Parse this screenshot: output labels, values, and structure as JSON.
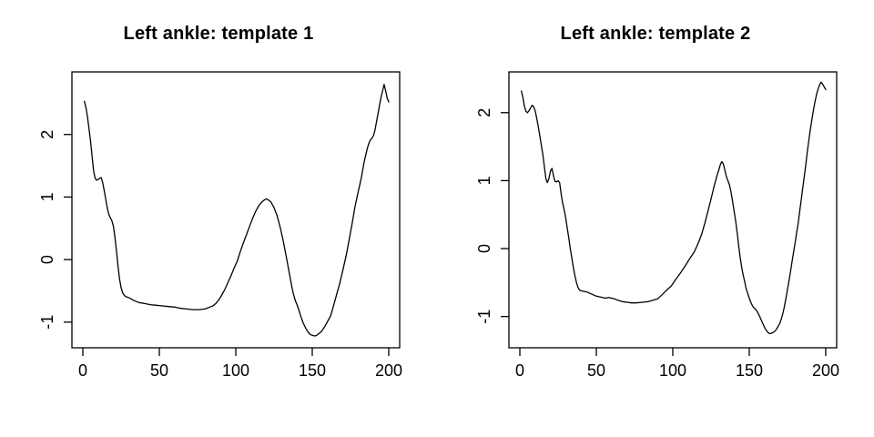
{
  "figure": {
    "background_color": "#ffffff",
    "line_color": "#000000",
    "text_color": "#000000"
  },
  "chart_data": [
    {
      "type": "line",
      "title": "Left ankle: template 1",
      "xlabel": "",
      "ylabel": "",
      "legend": null,
      "grid": false,
      "x_ticks": [
        0,
        50,
        100,
        150,
        200
      ],
      "x_tick_labels": [
        "0",
        "50",
        "100",
        "150",
        "200"
      ],
      "y_ticks": [
        -1,
        0,
        1,
        2
      ],
      "y_tick_labels": [
        "-1",
        "0",
        "1",
        "2"
      ],
      "xlim": [
        -7.15,
        207.15
      ],
      "ylim": [
        -1.41,
        3.0
      ],
      "line_color": "#000000",
      "series": [
        {
          "points": [
            [
              1,
              2.53
            ],
            [
              2,
              2.43
            ],
            [
              3,
              2.28
            ],
            [
              4,
              2.1
            ],
            [
              5,
              1.9
            ],
            [
              6,
              1.66
            ],
            [
              7,
              1.42
            ],
            [
              8,
              1.3
            ],
            [
              9,
              1.27
            ],
            [
              10,
              1.28
            ],
            [
              11,
              1.3
            ],
            [
              12,
              1.31
            ],
            [
              13,
              1.23
            ],
            [
              14,
              1.1
            ],
            [
              15,
              0.96
            ],
            [
              16,
              0.82
            ],
            [
              17,
              0.72
            ],
            [
              18,
              0.67
            ],
            [
              19,
              0.62
            ],
            [
              20,
              0.53
            ],
            [
              21,
              0.35
            ],
            [
              22,
              0.13
            ],
            [
              23,
              -0.1
            ],
            [
              24,
              -0.31
            ],
            [
              25,
              -0.45
            ],
            [
              26,
              -0.53
            ],
            [
              27,
              -0.57
            ],
            [
              28,
              -0.59
            ],
            [
              29,
              -0.6
            ],
            [
              31,
              -0.62
            ],
            [
              33,
              -0.65
            ],
            [
              35,
              -0.67
            ],
            [
              37,
              -0.69
            ],
            [
              40,
              -0.7
            ],
            [
              44,
              -0.72
            ],
            [
              48,
              -0.73
            ],
            [
              52,
              -0.74
            ],
            [
              56,
              -0.75
            ],
            [
              60,
              -0.76
            ],
            [
              64,
              -0.78
            ],
            [
              68,
              -0.79
            ],
            [
              72,
              -0.8
            ],
            [
              76,
              -0.8
            ],
            [
              80,
              -0.79
            ],
            [
              83,
              -0.76
            ],
            [
              85,
              -0.74
            ],
            [
              87,
              -0.7
            ],
            [
              89,
              -0.64
            ],
            [
              91,
              -0.56
            ],
            [
              93,
              -0.47
            ],
            [
              95,
              -0.36
            ],
            [
              97,
              -0.25
            ],
            [
              99,
              -0.13
            ],
            [
              101,
              -0.02
            ],
            [
              103,
              0.13
            ],
            [
              105,
              0.27
            ],
            [
              107,
              0.4
            ],
            [
              109,
              0.53
            ],
            [
              111,
              0.66
            ],
            [
              113,
              0.77
            ],
            [
              115,
              0.86
            ],
            [
              117,
              0.92
            ],
            [
              119,
              0.96
            ],
            [
              120,
              0.97
            ],
            [
              121,
              0.96
            ],
            [
              123,
              0.92
            ],
            [
              125,
              0.83
            ],
            [
              127,
              0.7
            ],
            [
              129,
              0.52
            ],
            [
              131,
              0.3
            ],
            [
              133,
              0.05
            ],
            [
              135,
              -0.22
            ],
            [
              136,
              -0.35
            ],
            [
              137,
              -0.48
            ],
            [
              138,
              -0.58
            ],
            [
              139,
              -0.66
            ],
            [
              140,
              -0.72
            ],
            [
              141,
              -0.79
            ],
            [
              142,
              -0.87
            ],
            [
              143,
              -0.94
            ],
            [
              144,
              -1.01
            ],
            [
              145,
              -1.06
            ],
            [
              146,
              -1.11
            ],
            [
              147,
              -1.15
            ],
            [
              148,
              -1.18
            ],
            [
              149,
              -1.2
            ],
            [
              150,
              -1.21
            ],
            [
              151,
              -1.22
            ],
            [
              152,
              -1.22
            ],
            [
              153,
              -1.21
            ],
            [
              154,
              -1.19
            ],
            [
              155,
              -1.17
            ],
            [
              156,
              -1.15
            ],
            [
              158,
              -1.08
            ],
            [
              160,
              -0.99
            ],
            [
              162,
              -0.9
            ],
            [
              164,
              -0.73
            ],
            [
              166,
              -0.55
            ],
            [
              168,
              -0.38
            ],
            [
              170,
              -0.17
            ],
            [
              172,
              0.05
            ],
            [
              174,
              0.3
            ],
            [
              176,
              0.57
            ],
            [
              178,
              0.85
            ],
            [
              180,
              1.08
            ],
            [
              182,
              1.3
            ],
            [
              184,
              1.57
            ],
            [
              186,
              1.78
            ],
            [
              187,
              1.86
            ],
            [
              188,
              1.91
            ],
            [
              189,
              1.94
            ],
            [
              190,
              1.98
            ],
            [
              191,
              2.07
            ],
            [
              192,
              2.2
            ],
            [
              193,
              2.33
            ],
            [
              194,
              2.47
            ],
            [
              195,
              2.6
            ],
            [
              196,
              2.7
            ],
            [
              197,
              2.8
            ],
            [
              198,
              2.7
            ],
            [
              199,
              2.58
            ],
            [
              200,
              2.52
            ]
          ]
        }
      ]
    },
    {
      "type": "line",
      "title": "Left ankle: template 2",
      "xlabel": "",
      "ylabel": "",
      "legend": null,
      "grid": false,
      "x_ticks": [
        0,
        50,
        100,
        150,
        200
      ],
      "x_tick_labels": [
        "0",
        "50",
        "100",
        "150",
        "200"
      ],
      "y_ticks": [
        -1,
        0,
        1,
        2
      ],
      "y_tick_labels": [
        "-1",
        "0",
        "1",
        "2"
      ],
      "xlim": [
        -7.15,
        207.15
      ],
      "ylim": [
        -1.46,
        2.6
      ],
      "line_color": "#000000",
      "series": [
        {
          "points": [
            [
              1,
              2.32
            ],
            [
              2,
              2.22
            ],
            [
              3,
              2.09
            ],
            [
              4,
              2.02
            ],
            [
              5,
              2.0
            ],
            [
              6,
              2.03
            ],
            [
              7,
              2.07
            ],
            [
              8,
              2.11
            ],
            [
              9,
              2.09
            ],
            [
              10,
              2.03
            ],
            [
              11,
              1.92
            ],
            [
              12,
              1.8
            ],
            [
              13,
              1.67
            ],
            [
              14,
              1.53
            ],
            [
              15,
              1.39
            ],
            [
              16,
              1.21
            ],
            [
              17,
              1.03
            ],
            [
              18,
              0.97
            ],
            [
              19,
              1.03
            ],
            [
              20,
              1.14
            ],
            [
              21,
              1.18
            ],
            [
              22,
              1.07
            ],
            [
              23,
              0.99
            ],
            [
              24,
              0.98
            ],
            [
              25,
              1.0
            ],
            [
              26,
              0.97
            ],
            [
              27,
              0.8
            ],
            [
              28,
              0.67
            ],
            [
              29,
              0.57
            ],
            [
              30,
              0.45
            ],
            [
              31,
              0.3
            ],
            [
              32,
              0.15
            ],
            [
              33,
              0.0
            ],
            [
              34,
              -0.14
            ],
            [
              35,
              -0.28
            ],
            [
              36,
              -0.4
            ],
            [
              37,
              -0.5
            ],
            [
              38,
              -0.57
            ],
            [
              39,
              -0.61
            ],
            [
              40,
              -0.62
            ],
            [
              42,
              -0.63
            ],
            [
              44,
              -0.64
            ],
            [
              46,
              -0.66
            ],
            [
              48,
              -0.68
            ],
            [
              50,
              -0.7
            ],
            [
              52,
              -0.71
            ],
            [
              54,
              -0.72
            ],
            [
              56,
              -0.73
            ],
            [
              58,
              -0.72
            ],
            [
              60,
              -0.73
            ],
            [
              62,
              -0.74
            ],
            [
              64,
              -0.76
            ],
            [
              67,
              -0.78
            ],
            [
              70,
              -0.79
            ],
            [
              73,
              -0.8
            ],
            [
              76,
              -0.8
            ],
            [
              80,
              -0.79
            ],
            [
              84,
              -0.78
            ],
            [
              87,
              -0.76
            ],
            [
              90,
              -0.74
            ],
            [
              93,
              -0.68
            ],
            [
              96,
              -0.61
            ],
            [
              99,
              -0.55
            ],
            [
              102,
              -0.45
            ],
            [
              105,
              -0.36
            ],
            [
              108,
              -0.26
            ],
            [
              111,
              -0.15
            ],
            [
              114,
              -0.05
            ],
            [
              117,
              0.1
            ],
            [
              119,
              0.22
            ],
            [
              121,
              0.38
            ],
            [
              123,
              0.55
            ],
            [
              125,
              0.73
            ],
            [
              127,
              0.92
            ],
            [
              129,
              1.08
            ],
            [
              130,
              1.15
            ],
            [
              131,
              1.23
            ],
            [
              132,
              1.28
            ],
            [
              133,
              1.25
            ],
            [
              134,
              1.16
            ],
            [
              135,
              1.06
            ],
            [
              136,
              1.0
            ],
            [
              137,
              0.94
            ],
            [
              138,
              0.84
            ],
            [
              139,
              0.71
            ],
            [
              140,
              0.56
            ],
            [
              141,
              0.42
            ],
            [
              142,
              0.25
            ],
            [
              143,
              0.06
            ],
            [
              144,
              -0.12
            ],
            [
              145,
              -0.27
            ],
            [
              146,
              -0.39
            ],
            [
              147,
              -0.49
            ],
            [
              148,
              -0.59
            ],
            [
              149,
              -0.66
            ],
            [
              150,
              -0.73
            ],
            [
              151,
              -0.79
            ],
            [
              152,
              -0.84
            ],
            [
              153,
              -0.87
            ],
            [
              154,
              -0.89
            ],
            [
              155,
              -0.92
            ],
            [
              156,
              -0.96
            ],
            [
              157,
              -1.01
            ],
            [
              158,
              -1.06
            ],
            [
              159,
              -1.11
            ],
            [
              160,
              -1.16
            ],
            [
              161,
              -1.2
            ],
            [
              162,
              -1.23
            ],
            [
              163,
              -1.25
            ],
            [
              164,
              -1.25
            ],
            [
              165,
              -1.24
            ],
            [
              166,
              -1.23
            ],
            [
              167,
              -1.21
            ],
            [
              168,
              -1.18
            ],
            [
              169,
              -1.14
            ],
            [
              170,
              -1.1
            ],
            [
              171,
              -1.03
            ],
            [
              172,
              -0.95
            ],
            [
              173,
              -0.85
            ],
            [
              174,
              -0.73
            ],
            [
              175,
              -0.6
            ],
            [
              176,
              -0.47
            ],
            [
              177,
              -0.33
            ],
            [
              178,
              -0.19
            ],
            [
              179,
              -0.05
            ],
            [
              180,
              0.09
            ],
            [
              181,
              0.24
            ],
            [
              182,
              0.38
            ],
            [
              183,
              0.55
            ],
            [
              184,
              0.72
            ],
            [
              185,
              0.9
            ],
            [
              186,
              1.07
            ],
            [
              187,
              1.25
            ],
            [
              188,
              1.43
            ],
            [
              189,
              1.6
            ],
            [
              190,
              1.76
            ],
            [
              191,
              1.91
            ],
            [
              192,
              2.04
            ],
            [
              193,
              2.16
            ],
            [
              194,
              2.27
            ],
            [
              195,
              2.35
            ],
            [
              196,
              2.41
            ],
            [
              197,
              2.45
            ],
            [
              198,
              2.42
            ],
            [
              199,
              2.38
            ],
            [
              200,
              2.34
            ]
          ]
        }
      ]
    }
  ]
}
